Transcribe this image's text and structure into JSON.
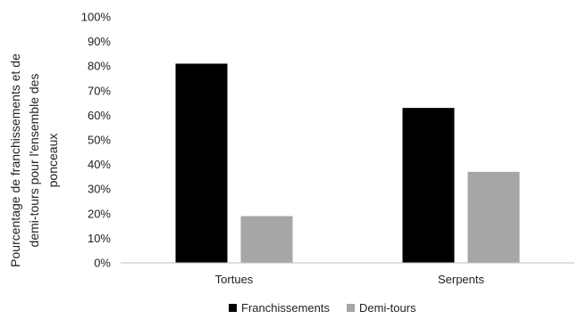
{
  "chart_data": {
    "type": "bar",
    "categories": [
      "Tortues",
      "Serpents"
    ],
    "series": [
      {
        "name": "Franchissements",
        "values": [
          0.81,
          0.63
        ],
        "color": "#000000"
      },
      {
        "name": "Demi-tours",
        "values": [
          0.19,
          0.37
        ],
        "color": "#a6a6a6"
      }
    ],
    "ylabel_lines": [
      "Pourcentage de franchissements et de",
      "demi-tours pour l'ensemble des",
      "ponceaux"
    ],
    "ylim": [
      0,
      1
    ],
    "yticks": [
      "0%",
      "10%",
      "20%",
      "30%",
      "40%",
      "50%",
      "60%",
      "70%",
      "80%",
      "90%",
      "100%"
    ],
    "grid": false,
    "legend_position": "bottom"
  }
}
